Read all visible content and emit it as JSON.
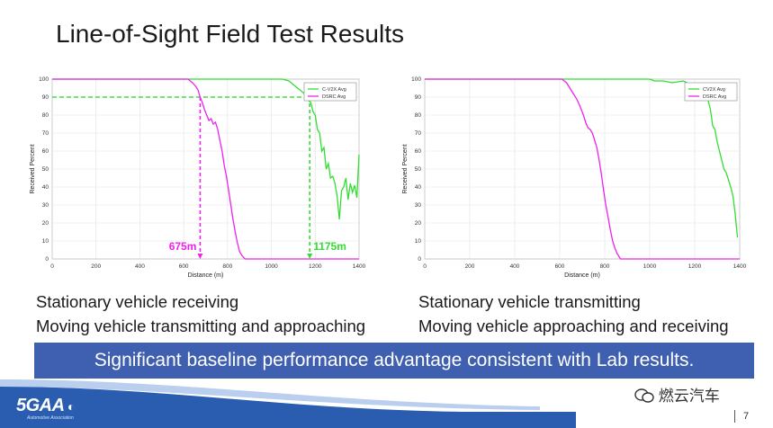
{
  "slide": {
    "title": "Line-of-Sight Field Test Results",
    "banner": "Significant baseline performance advantage consistent with Lab results.",
    "caption_left": [
      "Stationary vehicle receiving",
      "Moving vehicle transmitting and approaching"
    ],
    "caption_right": [
      "Stationary vehicle transmitting",
      "Moving vehicle approaching and receiving"
    ],
    "logo_text": "5GAA",
    "logo_subtext": "Automotive Association",
    "watermark": "燃云汽车",
    "page_number": "7"
  },
  "colors": {
    "cv2x": "#33dd33",
    "dsrc": "#ee22ee",
    "banner": "#3f5fb0",
    "footer": "#2a5db0"
  },
  "icons": [
    "wechat-icon",
    "5gaa-logo-icon"
  ],
  "chart_data": [
    {
      "type": "line",
      "xlabel": "Distance (m)",
      "ylabel": "Received Percent",
      "xlim": [
        0,
        1400
      ],
      "ylim": [
        0,
        100
      ],
      "xticks": [
        0,
        200,
        400,
        600,
        800,
        1000,
        1200,
        1400
      ],
      "yticks": [
        0,
        10,
        20,
        30,
        40,
        50,
        60,
        70,
        80,
        90,
        100
      ],
      "grid": true,
      "legend_position": "top-right",
      "series": [
        {
          "name": "C-V2X Avg",
          "color": "#33dd33",
          "x": [
            0,
            1050,
            1080,
            1100,
            1120,
            1140,
            1150,
            1160,
            1170,
            1180,
            1190,
            1200,
            1210,
            1220,
            1230,
            1240,
            1250,
            1260,
            1270,
            1280,
            1290,
            1300,
            1310,
            1320,
            1330,
            1340,
            1350,
            1360,
            1370,
            1380,
            1390,
            1400
          ],
          "y": [
            100,
            100,
            99,
            97,
            95,
            93,
            92,
            90,
            88,
            87,
            82,
            80,
            72,
            70,
            60,
            62,
            50,
            53,
            45,
            46,
            42,
            35,
            22,
            38,
            40,
            45,
            33,
            42,
            37,
            41,
            34,
            58
          ]
        },
        {
          "name": "DSRC Avg",
          "color": "#ee22ee",
          "x": [
            0,
            620,
            640,
            655,
            665,
            675,
            685,
            695,
            705,
            715,
            725,
            735,
            745,
            755,
            765,
            775,
            785,
            795,
            805,
            815,
            825,
            835,
            845,
            855,
            865,
            880,
            1400
          ],
          "y": [
            100,
            100,
            98,
            96,
            94,
            90,
            87,
            83,
            80,
            77,
            78,
            75,
            76,
            72,
            66,
            60,
            52,
            46,
            38,
            30,
            22,
            15,
            9,
            4,
            2,
            0,
            0
          ]
        }
      ],
      "threshold_line": 90,
      "annotations": [
        {
          "text": "675m",
          "x": 675,
          "color": "#ee22ee"
        },
        {
          "text": "1175m",
          "x": 1175,
          "color": "#33dd33"
        }
      ]
    },
    {
      "type": "line",
      "xlabel": "Distance (m)",
      "ylabel": "Received Percent",
      "xlim": [
        0,
        1400
      ],
      "ylim": [
        0,
        100
      ],
      "xticks": [
        0,
        200,
        400,
        600,
        800,
        1000,
        1200,
        1400
      ],
      "yticks": [
        0,
        10,
        20,
        30,
        40,
        50,
        60,
        70,
        80,
        90,
        100
      ],
      "grid": true,
      "legend_position": "top-right",
      "series": [
        {
          "name": "CV2X Avg",
          "color": "#33dd33",
          "x": [
            0,
            1000,
            1020,
            1060,
            1100,
            1150,
            1180,
            1200,
            1220,
            1240,
            1260,
            1270,
            1280,
            1290,
            1300,
            1310,
            1320,
            1330,
            1340,
            1350,
            1360,
            1370,
            1380,
            1390
          ],
          "y": [
            100,
            100,
            99,
            99,
            98,
            99,
            97,
            96,
            94,
            92,
            88,
            83,
            74,
            72,
            65,
            60,
            55,
            50,
            48,
            44,
            40,
            35,
            25,
            12
          ]
        },
        {
          "name": "DSRC Avg",
          "color": "#ee22ee",
          "x": [
            0,
            610,
            630,
            645,
            660,
            675,
            690,
            705,
            715,
            725,
            735,
            745,
            755,
            765,
            775,
            785,
            795,
            805,
            815,
            825,
            835,
            845,
            855,
            870,
            1400
          ],
          "y": [
            100,
            100,
            98,
            95,
            92,
            89,
            85,
            80,
            76,
            73,
            72,
            70,
            66,
            62,
            55,
            47,
            38,
            30,
            23,
            16,
            10,
            6,
            3,
            0,
            0
          ]
        }
      ],
      "threshold_line": null,
      "annotations": []
    }
  ]
}
